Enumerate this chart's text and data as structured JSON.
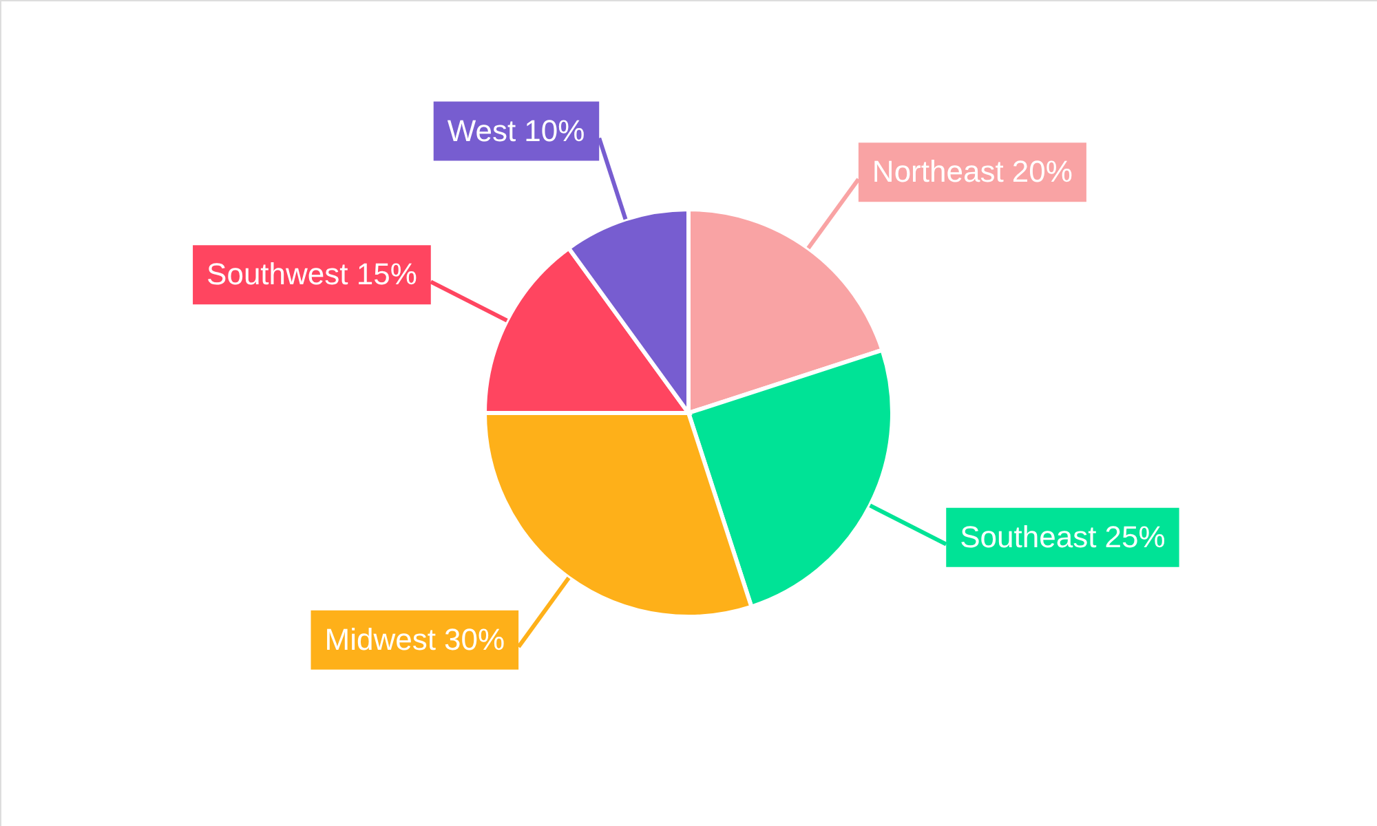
{
  "chart_data": {
    "type": "pie",
    "categories": [
      "Northeast",
      "Southeast",
      "Midwest",
      "Southwest",
      "West"
    ],
    "values": [
      20,
      25,
      30,
      15,
      10
    ],
    "value_labels": [
      "20%",
      "25%",
      "30%",
      "15%",
      "10%"
    ],
    "colors": [
      "#f9a3a4",
      "#00e396",
      "#feb019",
      "#ff4560",
      "#775dd0"
    ]
  }
}
